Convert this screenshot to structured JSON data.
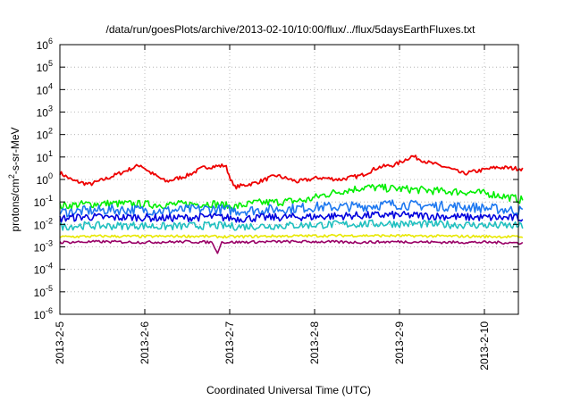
{
  "chart_data": {
    "type": "line",
    "title": "/data/run/goesPlots/archive/2013-02-10/10:00/flux/../flux/5daysEarthFluxes.txt",
    "xlabel": "Coordinated Universal Time (UTC)",
    "ylabel_parts": {
      "pre": "protons/cm",
      "sup": "2",
      "post": "-s-sr-MeV"
    },
    "yscale": "log",
    "ylim": [
      1e-06,
      1000000.0
    ],
    "y_ticks": [
      {
        "base": "10",
        "exp": "-6",
        "value": 1e-06
      },
      {
        "base": "10",
        "exp": "-5",
        "value": 1e-05
      },
      {
        "base": "10",
        "exp": "-4",
        "value": 0.0001
      },
      {
        "base": "10",
        "exp": "-3",
        "value": 0.001
      },
      {
        "base": "10",
        "exp": "-2",
        "value": 0.01
      },
      {
        "base": "10",
        "exp": "-1",
        "value": 0.1
      },
      {
        "base": "10",
        "exp": "0",
        "value": 1
      },
      {
        "base": "10",
        "exp": "1",
        "value": 10
      },
      {
        "base": "10",
        "exp": "2",
        "value": 100
      },
      {
        "base": "10",
        "exp": "3",
        "value": 1000
      },
      {
        "base": "10",
        "exp": "4",
        "value": 10000
      },
      {
        "base": "10",
        "exp": "5",
        "value": 100000
      },
      {
        "base": "10",
        "exp": "6",
        "value": 1000000
      }
    ],
    "x_ticks": [
      "2013-2-5",
      "2013-2-6",
      "2013-2-7",
      "2013-2-8",
      "2013-2-9",
      "2013-2-10"
    ],
    "x_range_days": [
      0,
      5.45
    ],
    "grid": true,
    "series": [
      {
        "color": "#ee0000",
        "x": [
          0,
          0.15,
          0.35,
          0.55,
          0.75,
          0.95,
          1.05,
          1.25,
          1.5,
          1.7,
          1.95,
          2.05,
          2.3,
          2.55,
          2.8,
          3.05,
          3.3,
          3.55,
          3.75,
          3.95,
          4.15,
          4.35,
          4.55,
          4.75,
          4.95,
          5.15,
          5.3,
          5.45
        ],
        "y": [
          2,
          0.9,
          0.6,
          1.1,
          2.2,
          4.5,
          2.2,
          0.8,
          1.5,
          3.5,
          4.2,
          0.45,
          0.7,
          1.5,
          0.8,
          1.2,
          1.0,
          1.5,
          3.5,
          4.5,
          11,
          5.5,
          3.5,
          1.8,
          2.5,
          3.5,
          3.2,
          3.0
        ]
      },
      {
        "color": "#00ee00",
        "x": [
          0,
          0.3,
          0.6,
          0.9,
          1.2,
          1.5,
          1.8,
          2.05,
          2.3,
          2.6,
          2.9,
          3.1,
          3.3,
          3.6,
          3.9,
          4.2,
          4.5,
          4.8,
          5.1,
          5.3,
          5.45
        ],
        "y": [
          0.065,
          0.08,
          0.085,
          0.08,
          0.075,
          0.08,
          0.085,
          0.06,
          0.09,
          0.1,
          0.12,
          0.2,
          0.3,
          0.45,
          0.4,
          0.35,
          0.3,
          0.28,
          0.22,
          0.16,
          0.12
        ]
      },
      {
        "color": "#1e78f0",
        "x": [
          0,
          0.3,
          0.6,
          0.9,
          1.2,
          1.5,
          1.8,
          2.1,
          2.4,
          2.7,
          3.0,
          3.3,
          3.6,
          3.9,
          4.2,
          4.5,
          4.8,
          5.1,
          5.45
        ],
        "y": [
          0.035,
          0.04,
          0.045,
          0.045,
          0.04,
          0.045,
          0.05,
          0.04,
          0.045,
          0.05,
          0.06,
          0.06,
          0.065,
          0.08,
          0.07,
          0.065,
          0.06,
          0.05,
          0.04
        ]
      },
      {
        "color": "#0000dd",
        "x": [
          0,
          0.3,
          0.6,
          0.9,
          1.2,
          1.5,
          1.8,
          2.1,
          2.4,
          2.7,
          3.0,
          3.3,
          3.6,
          3.9,
          4.2,
          4.5,
          4.8,
          5.1,
          5.45
        ],
        "y": [
          0.018,
          0.022,
          0.02,
          0.021,
          0.019,
          0.02,
          0.022,
          0.018,
          0.02,
          0.021,
          0.022,
          0.024,
          0.025,
          0.026,
          0.025,
          0.023,
          0.021,
          0.02,
          0.019
        ]
      },
      {
        "color": "#20c0c0",
        "x": [
          0,
          0.3,
          0.6,
          0.9,
          1.2,
          1.5,
          1.8,
          2.1,
          2.4,
          2.7,
          3.0,
          3.3,
          3.6,
          3.9,
          4.2,
          4.5,
          4.8,
          5.1,
          5.45
        ],
        "y": [
          0.008,
          0.009,
          0.0085,
          0.009,
          0.008,
          0.0085,
          0.009,
          0.008,
          0.0085,
          0.009,
          0.0095,
          0.01,
          0.0105,
          0.011,
          0.0105,
          0.01,
          0.0095,
          0.009,
          0.0085
        ]
      },
      {
        "color": "#e8e800",
        "x": [
          0,
          0.5,
          1.0,
          1.5,
          2.0,
          2.5,
          3.0,
          3.5,
          4.0,
          4.5,
          5.0,
          5.45
        ],
        "y": [
          0.0028,
          0.003,
          0.0029,
          0.003,
          0.0028,
          0.003,
          0.0031,
          0.0032,
          0.0031,
          0.003,
          0.0029,
          0.0028
        ]
      },
      {
        "color": "#990066",
        "x": [
          0,
          0.5,
          1.0,
          1.5,
          1.8,
          1.85,
          1.9,
          2.0,
          2.5,
          3.0,
          3.5,
          4.0,
          4.5,
          5.0,
          5.45
        ],
        "y": [
          0.0016,
          0.0017,
          0.0016,
          0.0017,
          0.0016,
          0.0005,
          0.0016,
          0.0016,
          0.0017,
          0.0017,
          0.0016,
          0.0017,
          0.0016,
          0.0016,
          0.0015
        ]
      }
    ]
  }
}
